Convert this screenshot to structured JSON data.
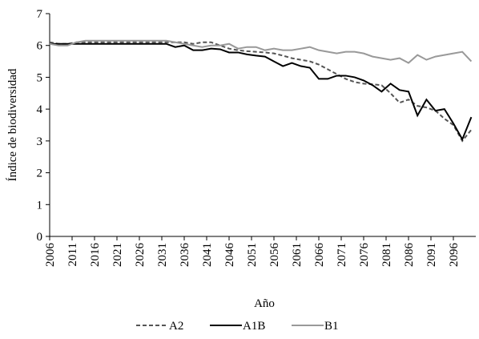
{
  "chart_data": {
    "type": "line",
    "x_label": "Año",
    "y_label": "Índice de biodiversidad",
    "x": [
      2006,
      2008,
      2010,
      2012,
      2014,
      2016,
      2018,
      2020,
      2022,
      2024,
      2026,
      2028,
      2030,
      2032,
      2034,
      2036,
      2038,
      2040,
      2042,
      2044,
      2046,
      2048,
      2050,
      2052,
      2054,
      2056,
      2058,
      2060,
      2062,
      2064,
      2066,
      2068,
      2070,
      2072,
      2074,
      2076,
      2078,
      2080,
      2082,
      2084,
      2086,
      2088,
      2090,
      2092,
      2094,
      2096,
      2098,
      2100
    ],
    "series": [
      {
        "name": "A2",
        "color": "#555555",
        "dashed": true,
        "values": [
          6.1,
          6.05,
          6.05,
          6.1,
          6.1,
          6.1,
          6.1,
          6.1,
          6.1,
          6.1,
          6.1,
          6.1,
          6.1,
          6.1,
          6.1,
          6.1,
          6.05,
          6.1,
          6.1,
          6.0,
          5.9,
          5.85,
          5.82,
          5.8,
          5.78,
          5.75,
          5.68,
          5.6,
          5.55,
          5.5,
          5.4,
          5.25,
          5.1,
          4.95,
          4.85,
          4.8,
          4.78,
          4.75,
          4.5,
          4.2,
          4.3,
          4.1,
          4.05,
          3.95,
          3.7,
          3.5,
          3.0,
          3.35
        ]
      },
      {
        "name": "A1B",
        "color": "#000000",
        "dashed": false,
        "values": [
          6.05,
          6.05,
          6.05,
          6.05,
          6.05,
          6.05,
          6.05,
          6.05,
          6.05,
          6.05,
          6.05,
          6.05,
          6.05,
          6.05,
          5.95,
          6.0,
          5.85,
          5.85,
          5.9,
          5.88,
          5.78,
          5.78,
          5.72,
          5.68,
          5.65,
          5.5,
          5.35,
          5.45,
          5.35,
          5.3,
          4.95,
          4.95,
          5.05,
          5.05,
          5.0,
          4.9,
          4.75,
          4.55,
          4.8,
          4.6,
          4.55,
          3.8,
          4.3,
          3.95,
          4.0,
          3.55,
          3.05,
          3.75
        ]
      },
      {
        "name": "B1",
        "color": "#999999",
        "dashed": false,
        "values": [
          6.05,
          6.0,
          6.0,
          6.1,
          6.15,
          6.15,
          6.15,
          6.15,
          6.15,
          6.15,
          6.15,
          6.15,
          6.15,
          6.15,
          6.1,
          6.05,
          6.0,
          5.95,
          6.0,
          6.0,
          6.05,
          5.9,
          5.95,
          5.95,
          5.85,
          5.9,
          5.85,
          5.85,
          5.9,
          5.95,
          5.85,
          5.8,
          5.75,
          5.8,
          5.8,
          5.75,
          5.65,
          5.6,
          5.55,
          5.6,
          5.45,
          5.7,
          5.55,
          5.65,
          5.7,
          5.75,
          5.8,
          5.5
        ]
      }
    ],
    "xlim": [
      2006,
      2101
    ],
    "ylim": [
      0,
      7
    ],
    "xticks": [
      2006,
      2011,
      2016,
      2021,
      2026,
      2031,
      2036,
      2041,
      2046,
      2051,
      2056,
      2061,
      2066,
      2071,
      2076,
      2081,
      2086,
      2091,
      2096
    ],
    "yticks": [
      0,
      1,
      2,
      3,
      4,
      5,
      6,
      7
    ],
    "legend": "bottom"
  }
}
